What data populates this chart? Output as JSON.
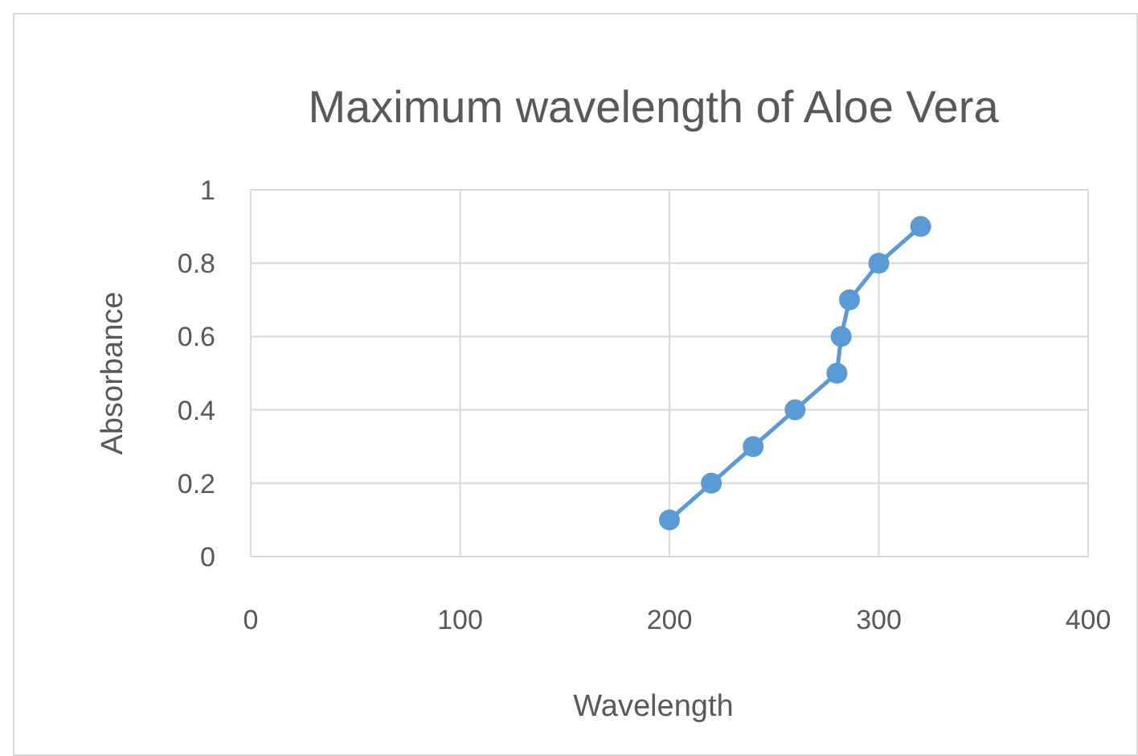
{
  "chart_data": {
    "type": "line",
    "title": "Maximum wavelength of Aloe Vera",
    "xlabel": "Wavelength",
    "ylabel": "Absorbance",
    "x": [
      200,
      220,
      240,
      260,
      280,
      282,
      286,
      300,
      320
    ],
    "series": [
      {
        "color": "#5b9bd5",
        "values": [
          0.1,
          0.2,
          0.3,
          0.4,
          0.5,
          0.6,
          0.7,
          0.8,
          0.9
        ]
      }
    ],
    "xlim": [
      0,
      400
    ],
    "xticks": [
      0,
      100,
      200,
      300,
      400
    ],
    "ylim": [
      0,
      1
    ],
    "yticks": [
      0,
      0.2,
      0.4,
      0.6,
      0.8,
      1
    ],
    "grid": true,
    "marker": "circle",
    "line_style": "solid"
  }
}
